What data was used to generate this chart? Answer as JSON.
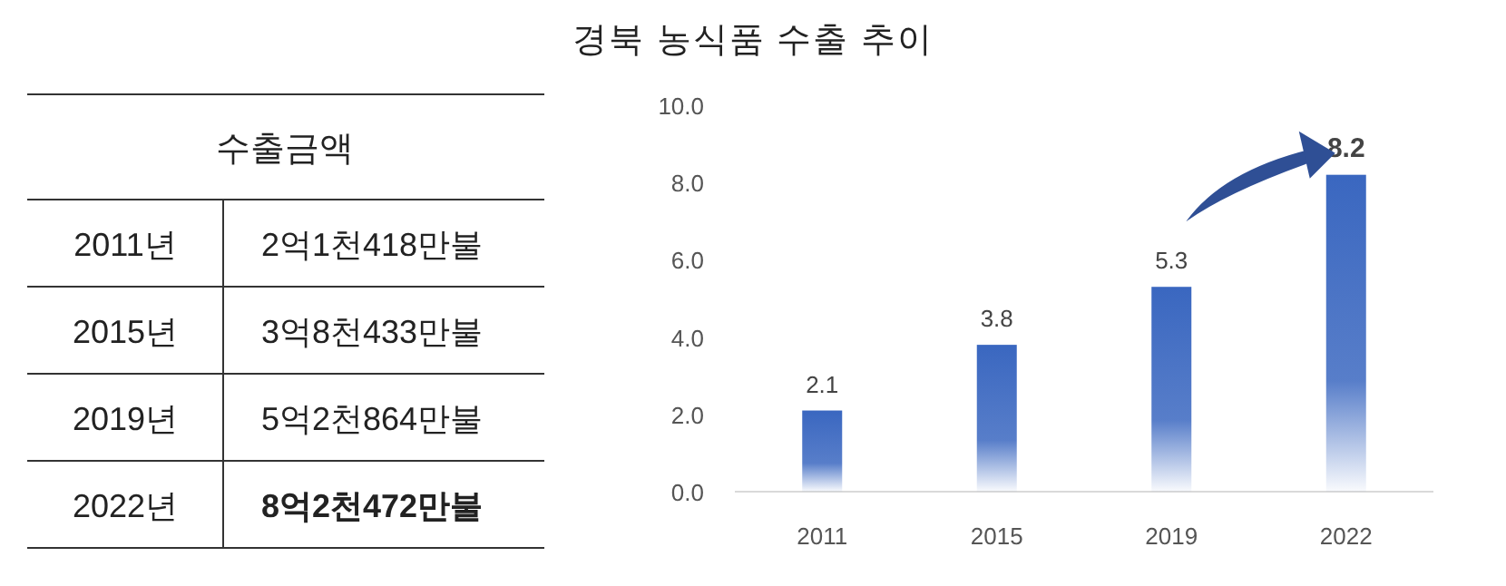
{
  "chart_data": {
    "type": "bar",
    "title": "경북 농식품 수출 추이",
    "categories": [
      "2011",
      "2015",
      "2019",
      "2022"
    ],
    "values": [
      2.1,
      3.8,
      5.3,
      8.2
    ],
    "color": "#3a67c0",
    "ylim": [
      0,
      10
    ],
    "yticks": [
      {
        "value": 0,
        "label": "0.0"
      },
      {
        "value": 2,
        "label": "2.0"
      },
      {
        "value": 4,
        "label": "4.0"
      },
      {
        "value": 6,
        "label": "6.0"
      },
      {
        "value": 8,
        "label": "8.0"
      },
      {
        "value": 10,
        "label": "10.0"
      }
    ],
    "data_labels": true,
    "grid": false,
    "annotations": [
      "수출금액",
      "2011년",
      "2억1천418만불",
      "2015년",
      "3억8천433만불",
      "2019년",
      "5억2천864만불",
      "2022년",
      "8억2천472만불"
    ]
  }
}
